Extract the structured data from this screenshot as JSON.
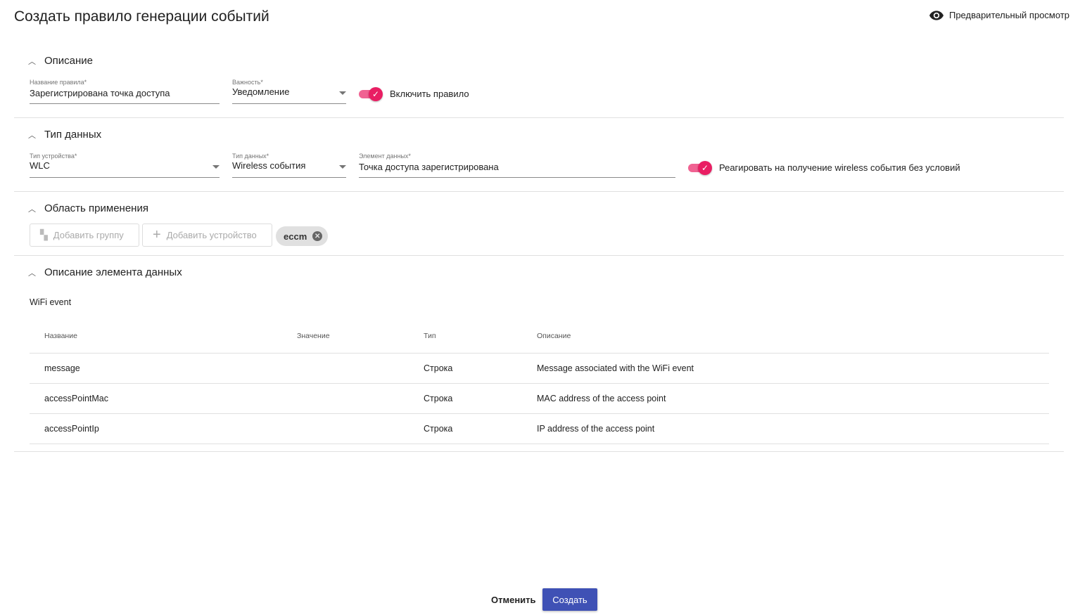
{
  "title": "Создать правило генерации событий",
  "preview_label": "Предварительный просмотр",
  "sections": {
    "description": {
      "title": "Описание",
      "rule_name_label": "Название правила*",
      "rule_name": "Зарегистрирована точка доступа",
      "severity_label": "Важность*",
      "severity": "Уведомление",
      "enable_label": "Включить правило",
      "enabled": true
    },
    "data_type": {
      "title": "Тип данных",
      "device_type_label": "Тип устройства*",
      "device_type": "WLC",
      "data_type_label": "Тип данных*",
      "data_type": "Wireless события",
      "data_element_label": "Элемент данных*",
      "data_element": "Точка доступа зарегистрирована",
      "react_label": "Реагировать на получение wireless события без условий",
      "react": true
    },
    "scope": {
      "title": "Область применения",
      "add_group": "Добавить группу",
      "add_device": "Добавить устройство",
      "chips": [
        "eccm"
      ]
    },
    "element_desc": {
      "title": "Описание элемента данных",
      "subtitle": "WiFi event",
      "columns": [
        "Название",
        "Значение",
        "Тип",
        "Описание"
      ],
      "rows": [
        [
          "message",
          "",
          "Строка",
          "Message associated with the WiFi event"
        ],
        [
          "accessPointMac",
          "",
          "Строка",
          "MAC address of the access point"
        ],
        [
          "accessPointIp",
          "",
          "Строка",
          "IP address of the access point"
        ]
      ]
    }
  },
  "footer": {
    "cancel": "Отменить",
    "create": "Создать"
  },
  "colors": {
    "accent": "#e91e63",
    "primary": "#3f51b5"
  }
}
